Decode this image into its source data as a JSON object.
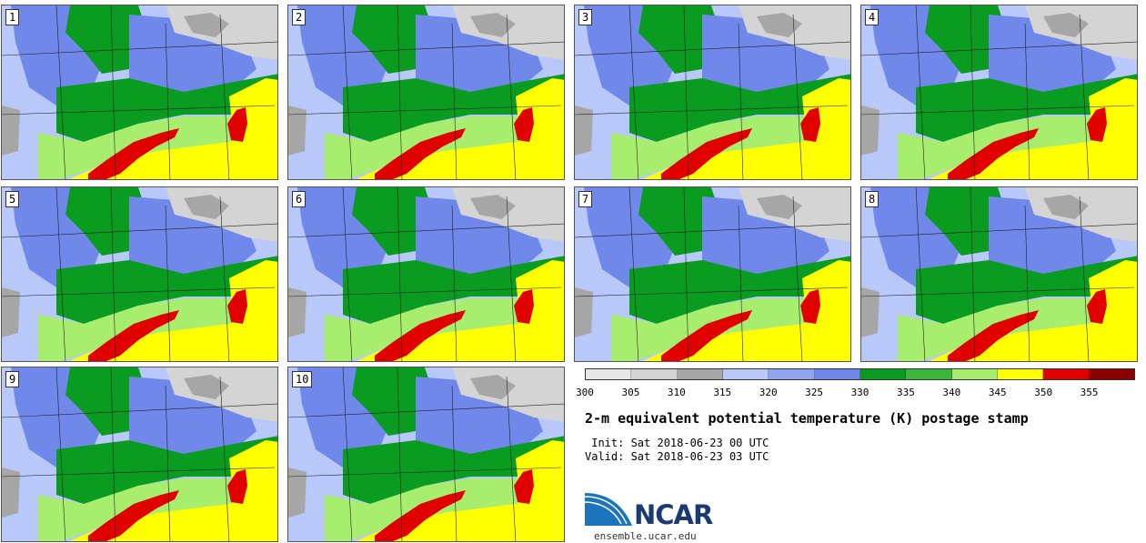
{
  "panels": [
    {
      "label": "1"
    },
    {
      "label": "2"
    },
    {
      "label": "3"
    },
    {
      "label": "4"
    },
    {
      "label": "5"
    },
    {
      "label": "6"
    },
    {
      "label": "7"
    },
    {
      "label": "8"
    },
    {
      "label": "9"
    },
    {
      "label": "10"
    }
  ],
  "colorbar": {
    "colors": [
      "#e8e8e8",
      "#d4d4d4",
      "#a6a6a6",
      "#b8c8f8",
      "#8fa5f0",
      "#6f88ea",
      "#0a9c20",
      "#3cb53c",
      "#a8ee6e",
      "#ffff00",
      "#e00000",
      "#8c0000"
    ],
    "ticks": [
      "300",
      "305",
      "310",
      "315",
      "320",
      "325",
      "330",
      "335",
      "340",
      "345",
      "350",
      "355"
    ]
  },
  "map_colors": {
    "gray": "#a6a6a6",
    "light_gray": "#d4d4d4",
    "light_blue": "#b8c8f8",
    "blue": "#6f88ea",
    "dark_green": "#0a9c20",
    "green": "#3cb53c",
    "light_green": "#a8ee6e",
    "yellow": "#ffff00",
    "red": "#e00000"
  },
  "title": "2-m equivalent potential temperature (K) postage stamp",
  "init": " Init: Sat 2018-06-23 00 UTC",
  "valid": "Valid: Sat 2018-06-23 03 UTC",
  "logo": {
    "text": "NCAR",
    "url": "ensemble.ucar.edu"
  }
}
